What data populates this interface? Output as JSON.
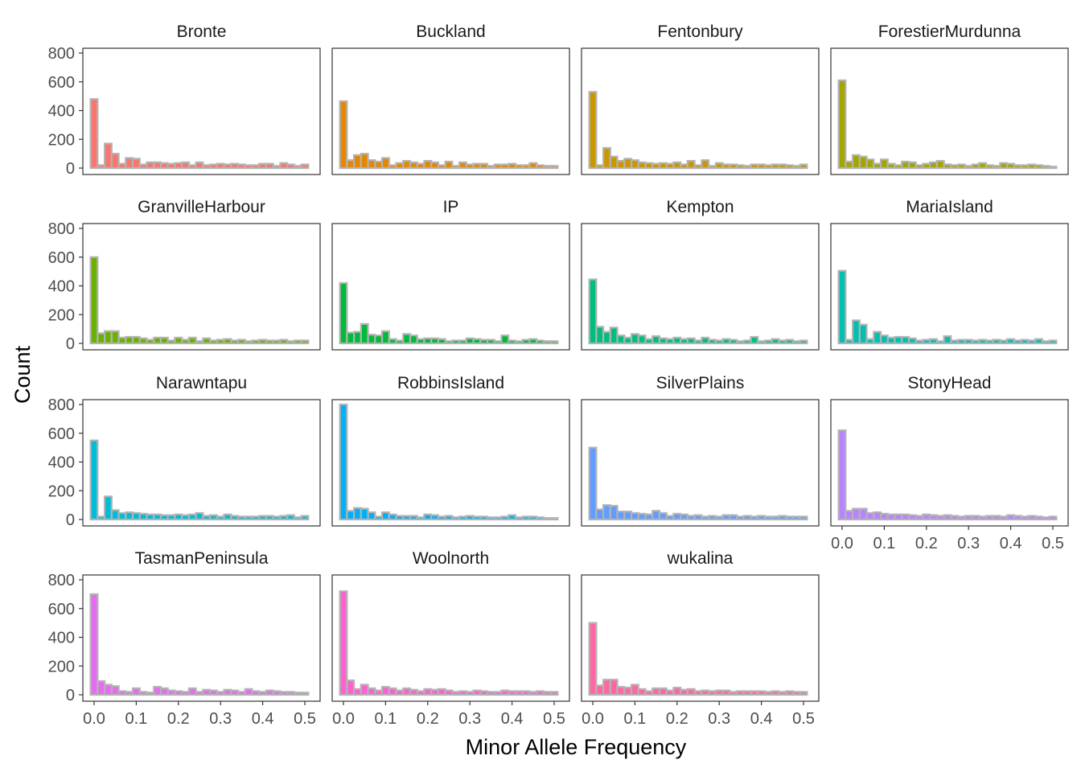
{
  "chart_data": {
    "type": "bar",
    "xlabel": "Minor Allele Frequency",
    "ylabel": "Count",
    "xlim": [
      0,
      0.5
    ],
    "ylim": [
      0,
      800
    ],
    "x_ticks": [
      "0.0",
      "0.1",
      "0.2",
      "0.3",
      "0.4",
      "0.5"
    ],
    "y_ticks": [
      "0",
      "200",
      "400",
      "600",
      "800"
    ],
    "bin_centers": [
      0.0,
      0.0167,
      0.0333,
      0.05,
      0.0667,
      0.0833,
      0.1,
      0.1167,
      0.1333,
      0.15,
      0.1667,
      0.1833,
      0.2,
      0.2167,
      0.2333,
      0.25,
      0.2667,
      0.2833,
      0.3,
      0.3167,
      0.3333,
      0.35,
      0.3667,
      0.3833,
      0.4,
      0.4167,
      0.4333,
      0.45,
      0.4667,
      0.4833,
      0.5
    ],
    "bar_outline": "#b3b3b3",
    "facets": [
      {
        "name": "Bronte",
        "color": "#F8766D",
        "values": [
          480,
          20,
          170,
          100,
          30,
          70,
          65,
          25,
          40,
          40,
          35,
          30,
          35,
          40,
          20,
          40,
          20,
          25,
          30,
          25,
          30,
          25,
          20,
          20,
          30,
          30,
          15,
          35,
          25,
          15,
          25
        ]
      },
      {
        "name": "Buckland",
        "color": "#E58700",
        "values": [
          465,
          55,
          90,
          100,
          55,
          45,
          70,
          20,
          35,
          50,
          40,
          30,
          50,
          40,
          20,
          45,
          15,
          40,
          25,
          30,
          30,
          15,
          25,
          25,
          30,
          20,
          20,
          35,
          20,
          15,
          15
        ]
      },
      {
        "name": "Fentonbury",
        "color": "#C99800",
        "values": [
          530,
          20,
          140,
          80,
          50,
          65,
          55,
          40,
          35,
          30,
          35,
          30,
          40,
          25,
          50,
          20,
          55,
          15,
          35,
          25,
          25,
          20,
          15,
          25,
          25,
          20,
          25,
          25,
          20,
          15,
          25
        ]
      },
      {
        "name": "ForestierMurdunna",
        "color": "#A3A500",
        "values": [
          610,
          45,
          90,
          80,
          60,
          30,
          60,
          30,
          20,
          45,
          40,
          20,
          30,
          40,
          50,
          25,
          20,
          25,
          15,
          25,
          35,
          20,
          15,
          35,
          30,
          20,
          20,
          25,
          20,
          15,
          10
        ]
      },
      {
        "name": "GranvilleHarbour",
        "color": "#6BB100",
        "values": [
          600,
          70,
          85,
          85,
          40,
          45,
          45,
          35,
          25,
          40,
          40,
          20,
          40,
          25,
          40,
          15,
          35,
          20,
          25,
          30,
          20,
          25,
          15,
          20,
          25,
          20,
          20,
          25,
          15,
          20,
          20
        ]
      },
      {
        "name": "IP",
        "color": "#00BA38",
        "values": [
          420,
          75,
          80,
          135,
          60,
          55,
          85,
          30,
          20,
          65,
          55,
          30,
          35,
          35,
          30,
          15,
          20,
          20,
          35,
          30,
          25,
          25,
          15,
          55,
          20,
          15,
          25,
          30,
          20,
          15,
          15
        ]
      },
      {
        "name": "Kempton",
        "color": "#00BF7D",
        "values": [
          445,
          115,
          80,
          110,
          55,
          40,
          65,
          55,
          30,
          50,
          35,
          30,
          40,
          30,
          35,
          20,
          40,
          25,
          20,
          30,
          25,
          15,
          20,
          45,
          15,
          20,
          30,
          20,
          25,
          15,
          20
        ]
      },
      {
        "name": "MariaIsland",
        "color": "#00C0AF",
        "values": [
          505,
          25,
          160,
          130,
          30,
          80,
          55,
          40,
          45,
          45,
          35,
          20,
          25,
          30,
          15,
          50,
          20,
          25,
          25,
          20,
          25,
          20,
          25,
          20,
          30,
          20,
          25,
          20,
          30,
          15,
          20
        ]
      },
      {
        "name": "Narawntapu",
        "color": "#00BCD8",
        "values": [
          550,
          20,
          160,
          65,
          45,
          50,
          45,
          40,
          35,
          35,
          30,
          30,
          35,
          30,
          35,
          45,
          25,
          30,
          20,
          35,
          25,
          20,
          20,
          20,
          25,
          25,
          20,
          25,
          30,
          15,
          25
        ]
      },
      {
        "name": "RobbinsIsland",
        "color": "#00B0F6",
        "values": [
          800,
          60,
          80,
          75,
          50,
          20,
          50,
          35,
          25,
          25,
          25,
          15,
          35,
          30,
          20,
          25,
          15,
          20,
          25,
          20,
          20,
          15,
          15,
          20,
          30,
          15,
          20,
          20,
          15,
          10,
          10
        ]
      },
      {
        "name": "SilverPlains",
        "color": "#619CFF",
        "values": [
          500,
          70,
          100,
          95,
          55,
          55,
          45,
          40,
          35,
          60,
          45,
          25,
          40,
          35,
          25,
          30,
          20,
          25,
          20,
          30,
          30,
          20,
          25,
          20,
          25,
          20,
          20,
          25,
          20,
          20,
          20
        ]
      },
      {
        "name": "StonyHead",
        "color": "#B983FF",
        "values": [
          620,
          60,
          75,
          75,
          45,
          50,
          40,
          35,
          35,
          35,
          30,
          25,
          35,
          30,
          25,
          30,
          25,
          20,
          25,
          25,
          20,
          25,
          25,
          20,
          30,
          25,
          20,
          25,
          20,
          15,
          20
        ]
      },
      {
        "name": "TasmanPeninsula",
        "color": "#E76BF3",
        "values": [
          700,
          95,
          70,
          60,
          25,
          20,
          45,
          20,
          15,
          55,
          45,
          30,
          25,
          20,
          45,
          20,
          35,
          30,
          20,
          35,
          30,
          20,
          40,
          25,
          20,
          30,
          25,
          20,
          20,
          15,
          15
        ]
      },
      {
        "name": "Woolnorth",
        "color": "#FD61D1",
        "values": [
          720,
          100,
          40,
          70,
          45,
          30,
          55,
          45,
          30,
          45,
          35,
          25,
          40,
          35,
          40,
          30,
          20,
          25,
          20,
          30,
          25,
          20,
          20,
          30,
          25,
          25,
          25,
          20,
          25,
          20,
          20
        ]
      },
      {
        "name": "wukalina",
        "color": "#FF67A4",
        "values": [
          500,
          65,
          105,
          105,
          55,
          50,
          70,
          40,
          25,
          45,
          45,
          30,
          50,
          35,
          40,
          25,
          30,
          25,
          30,
          30,
          20,
          25,
          25,
          25,
          25,
          20,
          25,
          20,
          25,
          20,
          20
        ]
      }
    ]
  }
}
